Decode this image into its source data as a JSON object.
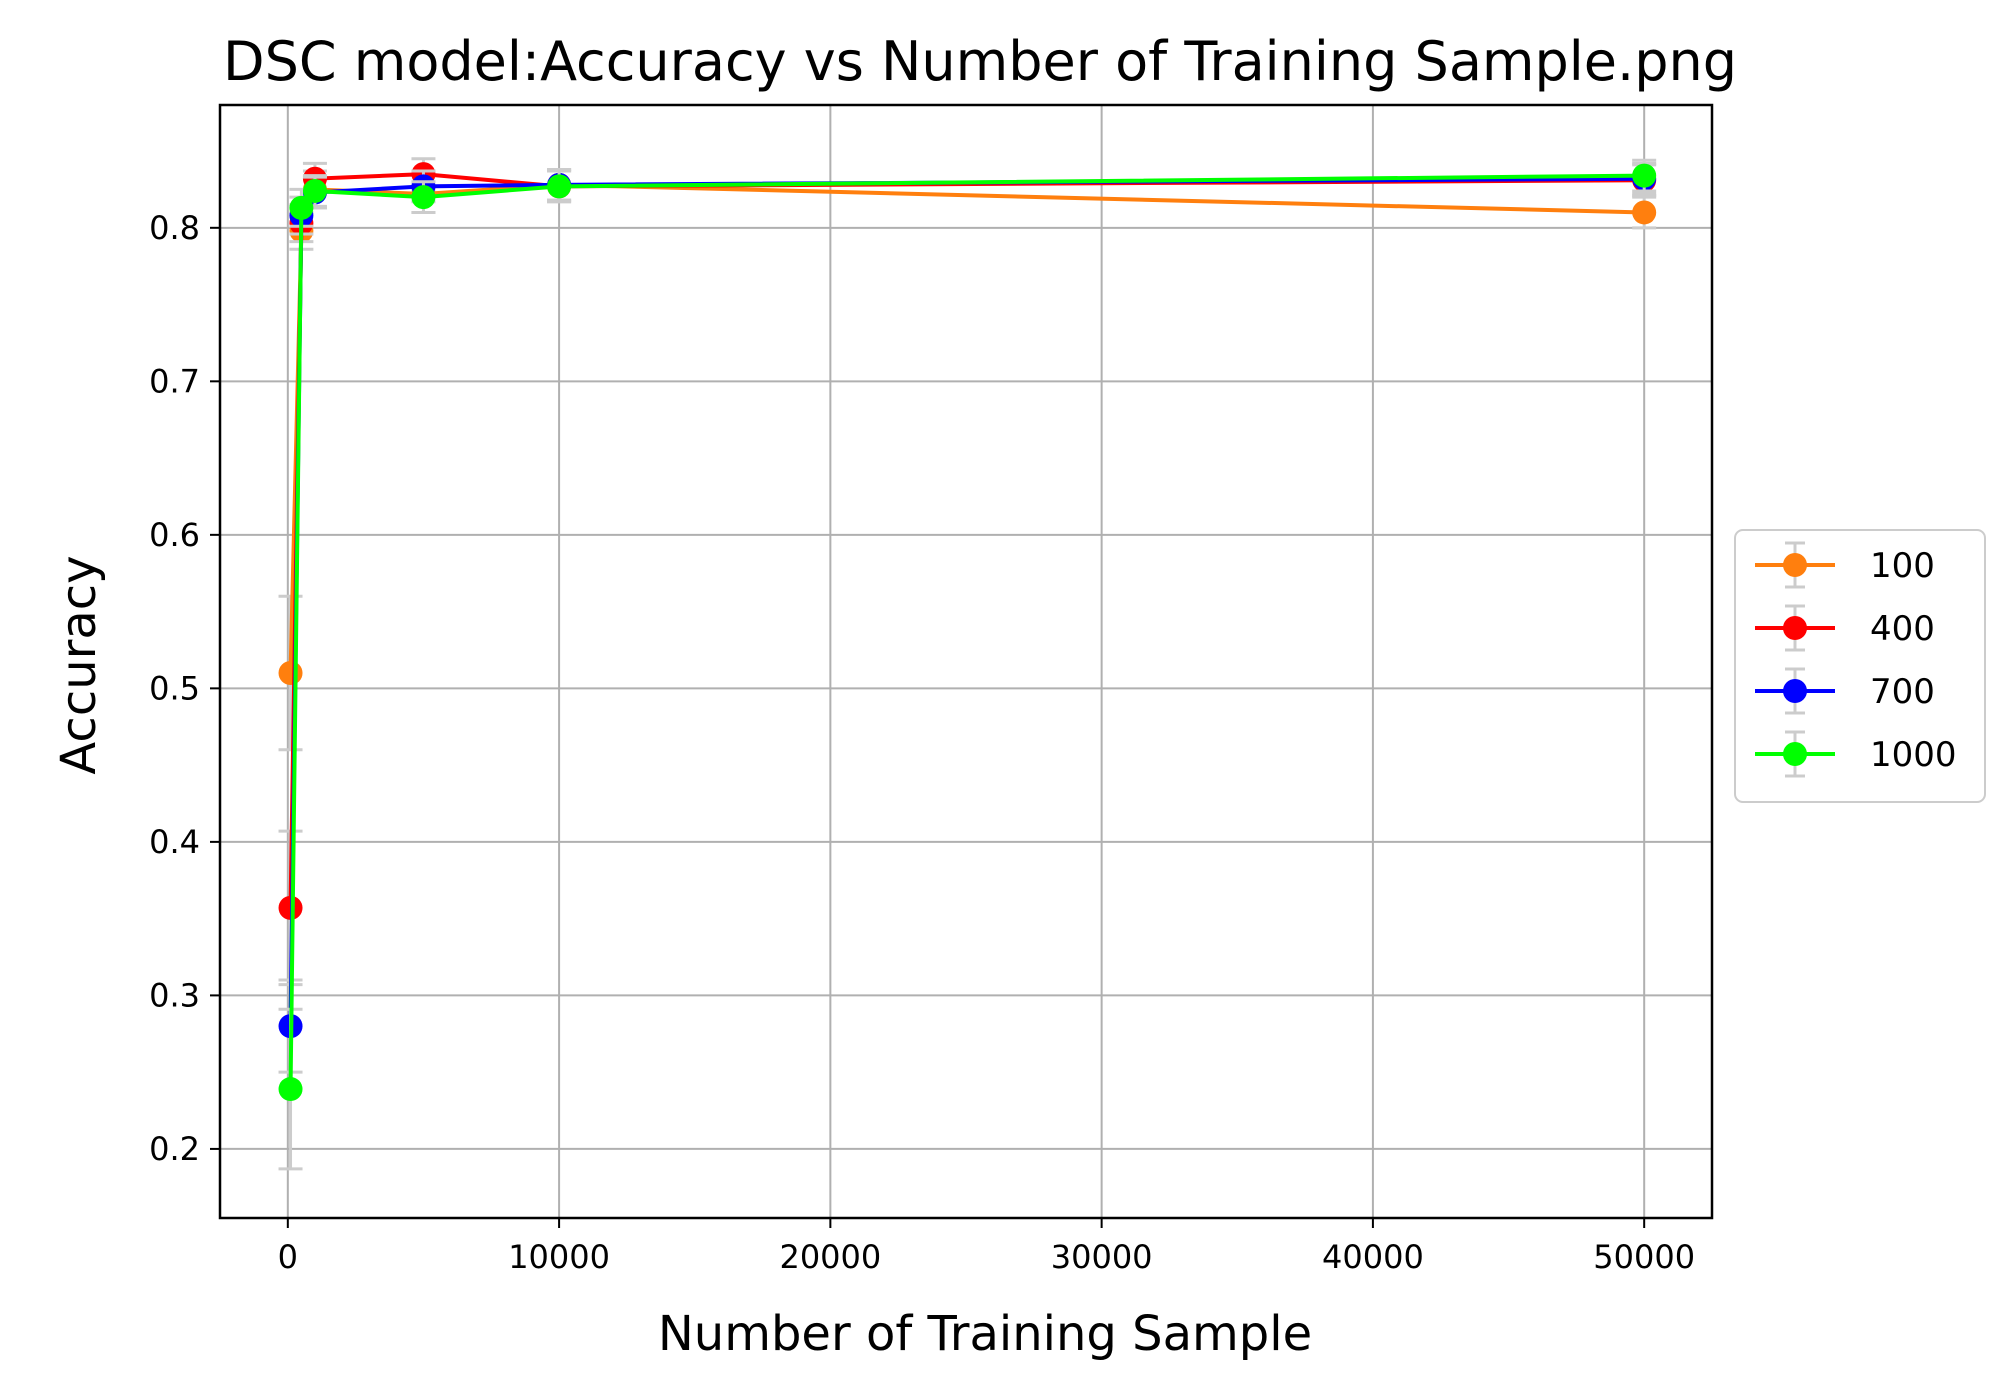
{
  "chart_data": {
    "type": "line",
    "title": "DSC model:Accuracy vs Number of Training Sample.png",
    "xlabel": "Number of Training Sample",
    "ylabel": "Accuracy",
    "x": [
      100,
      500,
      1000,
      5000,
      10000,
      50000
    ],
    "xlim": [
      -2500,
      52500
    ],
    "ylim": [
      0.155,
      0.88
    ],
    "xticks": [
      0,
      10000,
      20000,
      30000,
      40000,
      50000
    ],
    "xtick_labels": [
      "0",
      "10000",
      "20000",
      "30000",
      "40000",
      "50000"
    ],
    "yticks": [
      0.2,
      0.3,
      0.4,
      0.5,
      0.6,
      0.7,
      0.8
    ],
    "ytick_labels": [
      "0.2",
      "0.3",
      "0.4",
      "0.5",
      "0.6",
      "0.7",
      "0.8"
    ],
    "grid": true,
    "legend_position": "center-right-outside",
    "error_bar_color": "#cccccc",
    "series": [
      {
        "name": "100",
        "color": "#ff7f0e",
        "values": [
          0.51,
          0.798,
          0.825,
          0.822,
          0.828,
          0.81
        ],
        "errors": [
          0.05,
          0.012,
          0.012,
          0.012,
          0.01,
          0.01
        ]
      },
      {
        "name": "400",
        "color": "#ff0000",
        "values": [
          0.357,
          0.803,
          0.832,
          0.835,
          0.827,
          0.831
        ],
        "errors": [
          0.05,
          0.012,
          0.01,
          0.01,
          0.01,
          0.01
        ]
      },
      {
        "name": "700",
        "color": "#0000ff",
        "values": [
          0.28,
          0.808,
          0.823,
          0.827,
          0.828,
          0.832
        ],
        "errors": [
          0.03,
          0.012,
          0.01,
          0.01,
          0.01,
          0.01
        ]
      },
      {
        "name": "1000",
        "color": "#00ff00",
        "values": [
          0.239,
          0.813,
          0.824,
          0.82,
          0.827,
          0.834
        ],
        "errors": [
          0.052,
          0.012,
          0.01,
          0.01,
          0.01,
          0.01
        ]
      }
    ]
  }
}
